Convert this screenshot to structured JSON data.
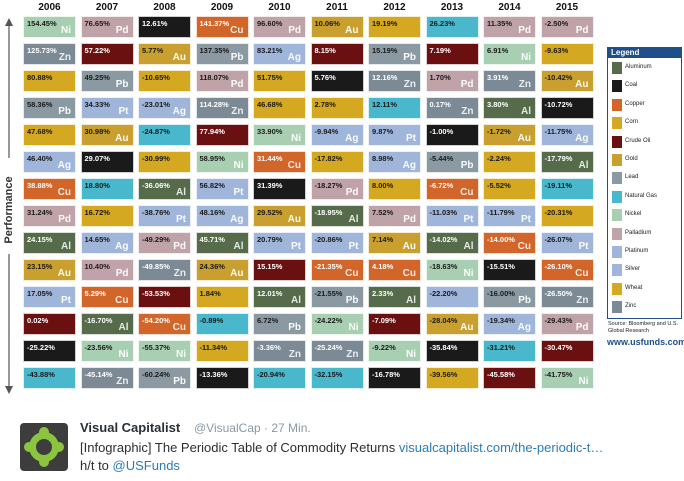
{
  "infographic": {
    "axis_label": "Performance",
    "years": [
      "2006",
      "2007",
      "2008",
      "2009",
      "2010",
      "2011",
      "2012",
      "2013",
      "2014",
      "2015"
    ],
    "columns": [
      [
        [
          "154.45%",
          "Ni"
        ],
        [
          "125.73%",
          "Zn"
        ],
        [
          "80.88%",
          ""
        ],
        [
          "58.36%",
          "Pb"
        ],
        [
          "47.68%",
          ""
        ],
        [
          "46.40%",
          "Ag"
        ],
        [
          "38.88%",
          "Cu"
        ],
        [
          "31.24%",
          "Pd"
        ],
        [
          "24.15%",
          "Al"
        ],
        [
          "23.15%",
          "Au"
        ],
        [
          "17.05%",
          "Pt"
        ],
        [
          "0.02%",
          ""
        ],
        [
          "-25.22%",
          ""
        ],
        [
          "-43.88%",
          ""
        ]
      ],
      [
        [
          "76.65%",
          "Pd"
        ],
        [
          "57.22%",
          ""
        ],
        [
          "49.25%",
          "Pb"
        ],
        [
          "34.33%",
          "Pt"
        ],
        [
          "30.98%",
          "Au"
        ],
        [
          "29.07%",
          ""
        ],
        [
          "18.80%",
          ""
        ],
        [
          "16.72%",
          ""
        ],
        [
          "14.65%",
          "Ag"
        ],
        [
          "10.40%",
          "Pd"
        ],
        [
          "5.29%",
          "Cu"
        ],
        [
          "-16.70%",
          "Al"
        ],
        [
          "-23.56%",
          "Ni"
        ],
        [
          "-45.14%",
          "Zn"
        ]
      ],
      [
        [
          "12.61%",
          ""
        ],
        [
          "5.77%",
          "Au"
        ],
        [
          "-10.65%",
          ""
        ],
        [
          "-23.01%",
          "Ag"
        ],
        [
          "-24.87%",
          ""
        ],
        [
          "-30.99%",
          ""
        ],
        [
          "-36.06%",
          "Al"
        ],
        [
          "-38.76%",
          "Pt"
        ],
        [
          "-49.29%",
          "Pd"
        ],
        [
          "-49.85%",
          "Zn"
        ],
        [
          "-53.53%",
          ""
        ],
        [
          "-54.20%",
          "Cu"
        ],
        [
          "-55.37%",
          "Ni"
        ],
        [
          "-60.24%",
          "Pb"
        ]
      ],
      [
        [
          "141.37%",
          "Cu"
        ],
        [
          "137.35%",
          "Pb"
        ],
        [
          "118.07%",
          "Pd"
        ],
        [
          "114.28%",
          "Zn"
        ],
        [
          "77.94%",
          ""
        ],
        [
          "58.95%",
          "Ni"
        ],
        [
          "56.82%",
          "Pt"
        ],
        [
          "48.16%",
          "Ag"
        ],
        [
          "45.71%",
          "Al"
        ],
        [
          "24.36%",
          "Au"
        ],
        [
          "1.84%",
          ""
        ],
        [
          "-0.89%",
          ""
        ],
        [
          "-11.34%",
          ""
        ],
        [
          "-13.36%",
          ""
        ]
      ],
      [
        [
          "96.60%",
          "Pd"
        ],
        [
          "83.21%",
          "Ag"
        ],
        [
          "51.75%",
          ""
        ],
        [
          "46.68%",
          ""
        ],
        [
          "33.90%",
          "Ni"
        ],
        [
          "31.44%",
          "Cu"
        ],
        [
          "31.39%",
          ""
        ],
        [
          "29.52%",
          "Au"
        ],
        [
          "20.79%",
          "Pt"
        ],
        [
          "15.15%",
          ""
        ],
        [
          "12.01%",
          "Al"
        ],
        [
          "6.72%",
          "Pb"
        ],
        [
          "-3.36%",
          "Zn"
        ],
        [
          "-20.94%",
          ""
        ]
      ],
      [
        [
          "10.06%",
          "Au"
        ],
        [
          "8.15%",
          ""
        ],
        [
          "5.76%",
          ""
        ],
        [
          "2.78%",
          ""
        ],
        [
          "-9.94%",
          "Ag"
        ],
        [
          "-17.82%",
          ""
        ],
        [
          "-18.27%",
          "Pd"
        ],
        [
          "-18.95%",
          "Al"
        ],
        [
          "-20.86%",
          "Pt"
        ],
        [
          "-21.35%",
          "Cu"
        ],
        [
          "-21.55%",
          "Pb"
        ],
        [
          "-24.22%",
          "Ni"
        ],
        [
          "-25.24%",
          "Zn"
        ],
        [
          "-32.15%",
          ""
        ]
      ],
      [
        [
          "19.19%",
          ""
        ],
        [
          "15.19%",
          "Pb"
        ],
        [
          "12.16%",
          "Zn"
        ],
        [
          "12.11%",
          ""
        ],
        [
          "9.87%",
          "Pt"
        ],
        [
          "8.98%",
          "Ag"
        ],
        [
          "8.00%",
          ""
        ],
        [
          "7.52%",
          "Pd"
        ],
        [
          "7.14%",
          "Au"
        ],
        [
          "4.18%",
          "Cu"
        ],
        [
          "2.33%",
          "Al"
        ],
        [
          "-7.09%",
          ""
        ],
        [
          "-9.22%",
          "Ni"
        ],
        [
          "-16.78%",
          ""
        ]
      ],
      [
        [
          "26.23%",
          ""
        ],
        [
          "7.19%",
          ""
        ],
        [
          "1.70%",
          "Pd"
        ],
        [
          "0.17%",
          "Zn"
        ],
        [
          "-1.00%",
          ""
        ],
        [
          "-5.44%",
          "Pb"
        ],
        [
          "-6.72%",
          "Cu"
        ],
        [
          "-11.03%",
          "Pt"
        ],
        [
          "-14.02%",
          "Al"
        ],
        [
          "-18.63%",
          "Ni"
        ],
        [
          "-22.20%",
          ""
        ],
        [
          "-28.04%",
          "Au"
        ],
        [
          "-35.84%",
          ""
        ],
        [
          "-39.56%",
          ""
        ]
      ],
      [
        [
          "11.35%",
          "Pd"
        ],
        [
          "6.91%",
          "Ni"
        ],
        [
          "3.91%",
          "Zn"
        ],
        [
          "3.80%",
          "Al"
        ],
        [
          "-1.72%",
          "Au"
        ],
        [
          "-2.24%",
          ""
        ],
        [
          "-5.52%",
          ""
        ],
        [
          "-11.79%",
          "Pt"
        ],
        [
          "-14.00%",
          "Cu"
        ],
        [
          "-15.51%",
          ""
        ],
        [
          "-16.00%",
          "Pb"
        ],
        [
          "-19.34%",
          "Ag"
        ],
        [
          "-31.21%",
          ""
        ],
        [
          "-45.58%",
          ""
        ]
      ],
      [
        [
          "-2.50%",
          "Pd"
        ],
        [
          "-9.63%",
          ""
        ],
        [
          "-10.42%",
          "Au"
        ],
        [
          "-10.72%",
          ""
        ],
        [
          "-11.75%",
          "Ag"
        ],
        [
          "-17.79%",
          "Al"
        ],
        [
          "-19.11%",
          ""
        ],
        [
          "-20.31%",
          ""
        ],
        [
          "-26.07%",
          "Pt"
        ],
        [
          "-26.10%",
          "Cu"
        ],
        [
          "-26.50%",
          "Zn"
        ],
        [
          "-29.43%",
          "Pd"
        ],
        [
          "-30.47%",
          ""
        ],
        [
          "-41.75%",
          "Ni"
        ]
      ]
    ],
    "colors": [
      [
        "#a9cfb2",
        "#7c8a96",
        "#d4a820",
        "#8b9aa2",
        "#d4a820",
        "#9fb5da",
        "#d2652a",
        "#c0a3a8",
        "#556b4a",
        "#c9a02f",
        "#9fb5da",
        "#6b1010",
        "#1a1a1a",
        "#4ab8cc"
      ],
      [
        "#c0a3a8",
        "#6b1010",
        "#8b9aa2",
        "#9fb5da",
        "#c9a02f",
        "#1a1a1a",
        "#4ab8cc",
        "#d4a820",
        "#9fb5da",
        "#c0a3a8",
        "#d2652a",
        "#556b4a",
        "#a9cfb2",
        "#7c8a96"
      ],
      [
        "#1a1a1a",
        "#c9a02f",
        "#d4a820",
        "#9fb5da",
        "#4ab8cc",
        "#d4a820",
        "#556b4a",
        "#9fb5da",
        "#c0a3a8",
        "#7c8a96",
        "#6b1010",
        "#d2652a",
        "#a9cfb2",
        "#8b9aa2"
      ],
      [
        "#d2652a",
        "#8b9aa2",
        "#c0a3a8",
        "#7c8a96",
        "#6b1010",
        "#a9cfb2",
        "#9fb5da",
        "#9fb5da",
        "#556b4a",
        "#c9a02f",
        "#d4a820",
        "#4ab8cc",
        "#d4a820",
        "#1a1a1a"
      ],
      [
        "#c0a3a8",
        "#9fb5da",
        "#d4a820",
        "#d4a820",
        "#a9cfb2",
        "#d2652a",
        "#1a1a1a",
        "#c9a02f",
        "#9fb5da",
        "#6b1010",
        "#556b4a",
        "#8b9aa2",
        "#7c8a96",
        "#4ab8cc"
      ],
      [
        "#c9a02f",
        "#6b1010",
        "#1a1a1a",
        "#d4a820",
        "#9fb5da",
        "#d4a820",
        "#c0a3a8",
        "#556b4a",
        "#9fb5da",
        "#d2652a",
        "#8b9aa2",
        "#a9cfb2",
        "#7c8a96",
        "#4ab8cc"
      ],
      [
        "#d4a820",
        "#8b9aa2",
        "#7c8a96",
        "#4ab8cc",
        "#9fb5da",
        "#9fb5da",
        "#d4a820",
        "#c0a3a8",
        "#c9a02f",
        "#d2652a",
        "#556b4a",
        "#6b1010",
        "#a9cfb2",
        "#1a1a1a"
      ],
      [
        "#4ab8cc",
        "#6b1010",
        "#c0a3a8",
        "#7c8a96",
        "#1a1a1a",
        "#8b9aa2",
        "#d2652a",
        "#9fb5da",
        "#556b4a",
        "#a9cfb2",
        "#9fb5da",
        "#c9a02f",
        "#1a1a1a",
        "#d4a820"
      ],
      [
        "#c0a3a8",
        "#a9cfb2",
        "#7c8a96",
        "#556b4a",
        "#c9a02f",
        "#d4a820",
        "#d4a820",
        "#9fb5da",
        "#d2652a",
        "#1a1a1a",
        "#8b9aa2",
        "#9fb5da",
        "#4ab8cc",
        "#6b1010"
      ],
      [
        "#c0a3a8",
        "#d4a820",
        "#c9a02f",
        "#1a1a1a",
        "#9fb5da",
        "#556b4a",
        "#4ab8cc",
        "#d4a820",
        "#9fb5da",
        "#d2652a",
        "#7c8a96",
        "#c0a3a8",
        "#6b1010",
        "#a9cfb2"
      ]
    ],
    "legend": {
      "title": "Legend",
      "items": [
        {
          "label": "Aluminum",
          "color": "#556b4a"
        },
        {
          "label": "Coal",
          "color": "#1a1a1a"
        },
        {
          "label": "Copper",
          "color": "#d2652a"
        },
        {
          "label": "Corn",
          "color": "#d4a820"
        },
        {
          "label": "Crude Oil",
          "color": "#6b1010"
        },
        {
          "label": "Gold",
          "color": "#c9a02f"
        },
        {
          "label": "Lead",
          "color": "#8b9aa2"
        },
        {
          "label": "Natural Gas",
          "color": "#4ab8cc"
        },
        {
          "label": "Nickel",
          "color": "#a9cfb2"
        },
        {
          "label": "Palladium",
          "color": "#c0a3a8"
        },
        {
          "label": "Platinum",
          "color": "#9fb5da"
        },
        {
          "label": "Silver",
          "color": "#9fb5da"
        },
        {
          "label": "Wheat",
          "color": "#d4a820"
        },
        {
          "label": "Zinc",
          "color": "#7c8a96"
        }
      ]
    },
    "source": "Source: Bloomberg and U.S. Global Research",
    "site": "www.usfunds.com"
  },
  "tweet": {
    "name": "Visual Capitalist",
    "handle": "@VisualCap",
    "time": "· 27 Min.",
    "text_prefix": "[Infographic] The Periodic Table of Commodity Returns ",
    "link_text": "visualcapitalist.com/the-periodic-t…",
    "text2_prefix": "h/t to ",
    "mention": "@USFunds"
  }
}
